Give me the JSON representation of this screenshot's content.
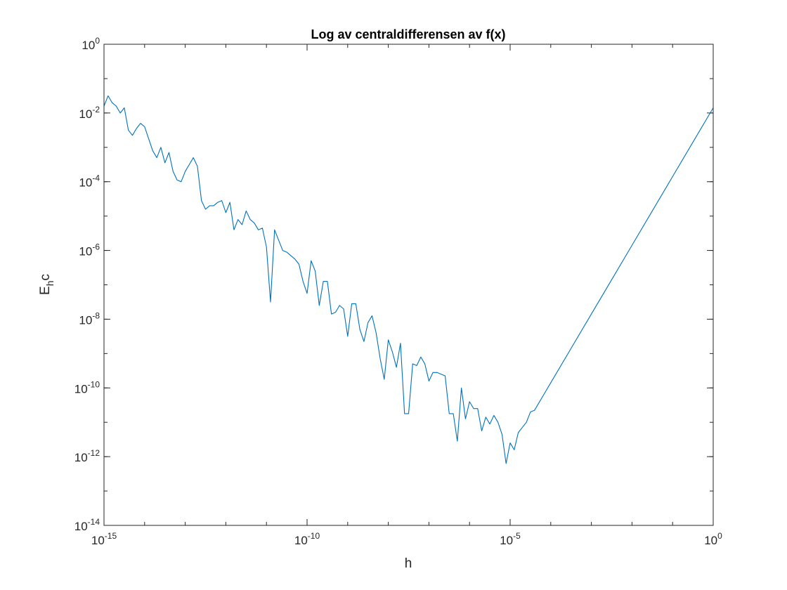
{
  "chart_data": {
    "type": "line",
    "title": "Log av centraldifferensen av f(x)",
    "xlabel": "h",
    "ylabel": {
      "main": "E",
      "sub": "h",
      "suffix": "c"
    },
    "xscale": "log",
    "yscale": "log",
    "xlim": [
      1e-15,
      1
    ],
    "ylim": [
      1e-14,
      1
    ],
    "grid": false,
    "legend": "none",
    "line_color": "#0072BD",
    "x_ticks": [
      {
        "base": "10",
        "exp": "-15"
      },
      {
        "base": "10",
        "exp": "-10"
      },
      {
        "base": "10",
        "exp": "-5"
      },
      {
        "base": "10",
        "exp": "0"
      }
    ],
    "y_ticks": [
      {
        "base": "10",
        "exp": "-14"
      },
      {
        "base": "10",
        "exp": "-12"
      },
      {
        "base": "10",
        "exp": "-10"
      },
      {
        "base": "10",
        "exp": "-8"
      },
      {
        "base": "10",
        "exp": "-6"
      },
      {
        "base": "10",
        "exp": "-4"
      },
      {
        "base": "10",
        "exp": "-2"
      },
      {
        "base": "10",
        "exp": "0"
      }
    ],
    "series": [
      {
        "x_log10": [
          -15.0,
          -14.9,
          -14.8,
          -14.7,
          -14.6,
          -14.5,
          -14.4,
          -14.3,
          -14.2,
          -14.1,
          -14.0,
          -13.9,
          -13.8,
          -13.7,
          -13.6,
          -13.5,
          -13.4,
          -13.3,
          -13.2,
          -13.1,
          -13.0,
          -12.9,
          -12.8,
          -12.7,
          -12.6,
          -12.5,
          -12.4,
          -12.3,
          -12.2,
          -12.1,
          -12.0,
          -11.9,
          -11.8,
          -11.7,
          -11.6,
          -11.5,
          -11.4,
          -11.3,
          -11.2,
          -11.1,
          -11.0,
          -10.9,
          -10.8,
          -10.7,
          -10.6,
          -10.5,
          -10.4,
          -10.3,
          -10.2,
          -10.1,
          -10.0,
          -9.9,
          -9.8,
          -9.7,
          -9.6,
          -9.5,
          -9.4,
          -9.3,
          -9.2,
          -9.1,
          -9.0,
          -8.9,
          -8.8,
          -8.7,
          -8.6,
          -8.5,
          -8.4,
          -8.3,
          -8.2,
          -8.1,
          -8.0,
          -7.9,
          -7.8,
          -7.7,
          -7.6,
          -7.5,
          -7.4,
          -7.3,
          -7.2,
          -7.1,
          -7.0,
          -6.9,
          -6.8,
          -6.7,
          -6.6,
          -6.5,
          -6.4,
          -6.3,
          -6.2,
          -6.1,
          -6.0,
          -5.9,
          -5.8,
          -5.7,
          -5.6,
          -5.5,
          -5.4,
          -5.3,
          -5.2,
          -5.1,
          -5.0,
          -4.9,
          -4.8,
          -4.7,
          -4.6,
          -4.5,
          -4.4,
          -4.3,
          -4.2,
          -4.1,
          -4.0,
          -3.5,
          -3.0,
          -2.5,
          -2.0,
          -1.5,
          -1.0,
          -0.5,
          0.0
        ],
        "y_log10": [
          -1.8,
          -1.5,
          -1.7,
          -1.8,
          -2.0,
          -1.85,
          -2.5,
          -2.65,
          -2.45,
          -2.3,
          -2.4,
          -2.75,
          -3.1,
          -3.3,
          -3.0,
          -3.45,
          -3.15,
          -3.7,
          -3.95,
          -4.0,
          -3.7,
          -3.5,
          -3.3,
          -3.55,
          -4.55,
          -4.8,
          -4.7,
          -4.7,
          -4.6,
          -4.55,
          -4.9,
          -4.6,
          -5.4,
          -5.1,
          -5.25,
          -4.85,
          -5.1,
          -5.2,
          -5.4,
          -5.35,
          -5.9,
          -7.5,
          -5.4,
          -5.7,
          -6.0,
          -6.05,
          -6.15,
          -6.25,
          -6.4,
          -6.9,
          -7.25,
          -6.3,
          -6.6,
          -7.6,
          -6.9,
          -6.9,
          -7.85,
          -7.8,
          -7.6,
          -7.7,
          -8.5,
          -7.55,
          -7.55,
          -8.3,
          -8.65,
          -8.1,
          -7.9,
          -8.4,
          -9.15,
          -9.75,
          -8.6,
          -8.95,
          -9.4,
          -8.7,
          -10.75,
          -10.75,
          -9.3,
          -9.35,
          -9.1,
          -9.3,
          -9.8,
          -9.55,
          -9.55,
          -9.6,
          -9.65,
          -10.75,
          -10.75,
          -11.55,
          -10.0,
          -10.9,
          -10.4,
          -10.6,
          -10.6,
          -11.25,
          -10.85,
          -11.05,
          -10.8,
          -11.0,
          -11.35,
          -12.2,
          -11.6,
          -11.8,
          -11.3,
          -11.15,
          -11.0,
          -10.7,
          -10.65,
          -10.45,
          -10.25,
          -10.05,
          -9.85,
          -8.85,
          -7.85,
          -6.85,
          -5.85,
          -4.85,
          -3.85,
          -2.85,
          -1.85
        ]
      }
    ]
  }
}
